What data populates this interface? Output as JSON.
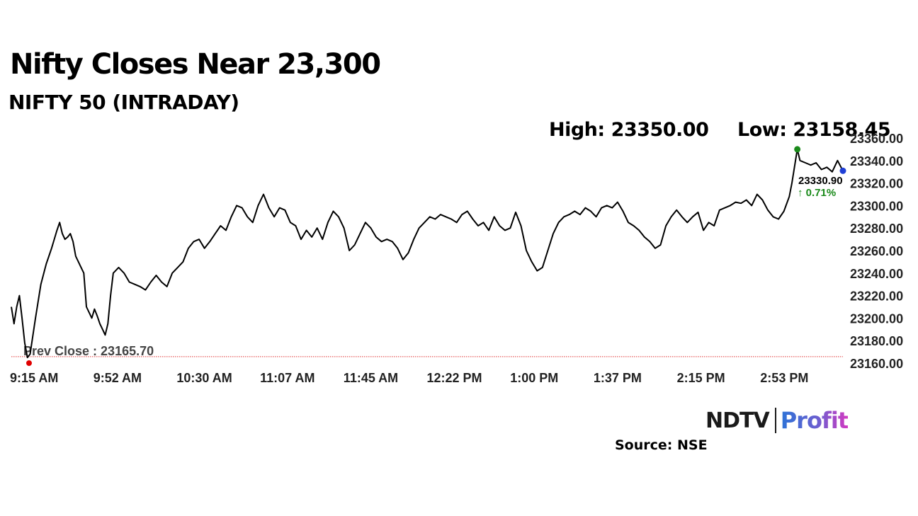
{
  "header": {
    "title": "Nifty Closes Near 23,300",
    "subtitle": "NIFTY 50 (INTRADAY)"
  },
  "stats": {
    "high_label": "High: 23350.00",
    "low_label": "Low: 23158.45"
  },
  "chart_data": {
    "type": "line",
    "title": "Nifty Closes Near 23,300",
    "subtitle": "NIFTY 50 (INTRADAY)",
    "xlabel": "",
    "ylabel": "",
    "x_tick_labels": [
      "9:15 AM",
      "9:52 AM",
      "10:30 AM",
      "11:07 AM",
      "11:45 AM",
      "12:22 PM",
      "1:00 PM",
      "1:37 PM",
      "2:15 PM",
      "2:53 PM"
    ],
    "y_tick_labels": [
      "23160.00",
      "23180.00",
      "23200.00",
      "23220.00",
      "23240.00",
      "23260.00",
      "23280.00",
      "23300.00",
      "23320.00",
      "23340.00",
      "23360.00"
    ],
    "ylim": [
      23160,
      23360
    ],
    "y_axis_side": "right",
    "grid": false,
    "series": [
      {
        "values": [
          [
            0,
            23210
          ],
          [
            1,
            23195
          ],
          [
            2,
            23210
          ],
          [
            3,
            23220
          ],
          [
            4,
            23200
          ],
          [
            5,
            23178
          ],
          [
            6,
            23165
          ],
          [
            7,
            23168
          ],
          [
            9,
            23200
          ],
          [
            11,
            23230
          ],
          [
            13,
            23248
          ],
          [
            14,
            23255
          ],
          [
            15,
            23262
          ],
          [
            16,
            23270
          ],
          [
            17,
            23278
          ],
          [
            18,
            23285
          ],
          [
            19,
            23275
          ],
          [
            20,
            23270
          ],
          [
            21,
            23272
          ],
          [
            22,
            23275
          ],
          [
            23,
            23268
          ],
          [
            24,
            23255
          ],
          [
            25,
            23250
          ],
          [
            26,
            23245
          ],
          [
            27,
            23240
          ],
          [
            28,
            23210
          ],
          [
            29,
            23205
          ],
          [
            30,
            23200
          ],
          [
            31,
            23208
          ],
          [
            32,
            23202
          ],
          [
            33,
            23195
          ],
          [
            34,
            23190
          ],
          [
            35,
            23185
          ],
          [
            36,
            23195
          ],
          [
            37,
            23220
          ],
          [
            38,
            23240
          ],
          [
            40,
            23245
          ],
          [
            42,
            23240
          ],
          [
            44,
            23232
          ],
          [
            46,
            23230
          ],
          [
            48,
            23228
          ],
          [
            50,
            23225
          ],
          [
            52,
            23232
          ],
          [
            54,
            23238
          ],
          [
            56,
            23232
          ],
          [
            58,
            23228
          ],
          [
            60,
            23240
          ],
          [
            62,
            23245
          ],
          [
            64,
            23250
          ],
          [
            66,
            23262
          ],
          [
            68,
            23268
          ],
          [
            70,
            23270
          ],
          [
            72,
            23262
          ],
          [
            74,
            23268
          ],
          [
            76,
            23275
          ],
          [
            78,
            23282
          ],
          [
            80,
            23278
          ],
          [
            82,
            23290
          ],
          [
            84,
            23300
          ],
          [
            86,
            23298
          ],
          [
            88,
            23290
          ],
          [
            90,
            23285
          ],
          [
            92,
            23300
          ],
          [
            94,
            23310
          ],
          [
            96,
            23298
          ],
          [
            98,
            23290
          ],
          [
            100,
            23298
          ],
          [
            102,
            23296
          ],
          [
            104,
            23285
          ],
          [
            106,
            23282
          ],
          [
            108,
            23270
          ],
          [
            110,
            23278
          ],
          [
            112,
            23272
          ],
          [
            114,
            23280
          ],
          [
            116,
            23270
          ],
          [
            118,
            23285
          ],
          [
            120,
            23295
          ],
          [
            122,
            23290
          ],
          [
            124,
            23280
          ],
          [
            126,
            23260
          ],
          [
            128,
            23265
          ],
          [
            130,
            23275
          ],
          [
            132,
            23285
          ],
          [
            134,
            23280
          ],
          [
            136,
            23272
          ],
          [
            138,
            23268
          ],
          [
            140,
            23270
          ],
          [
            142,
            23268
          ],
          [
            144,
            23262
          ],
          [
            146,
            23252
          ],
          [
            148,
            23258
          ],
          [
            150,
            23270
          ],
          [
            152,
            23280
          ],
          [
            154,
            23285
          ],
          [
            156,
            23290
          ],
          [
            158,
            23288
          ],
          [
            160,
            23292
          ],
          [
            162,
            23290
          ],
          [
            164,
            23288
          ],
          [
            166,
            23285
          ],
          [
            168,
            23292
          ],
          [
            170,
            23295
          ],
          [
            172,
            23288
          ],
          [
            174,
            23282
          ],
          [
            176,
            23285
          ],
          [
            178,
            23278
          ],
          [
            180,
            23290
          ],
          [
            182,
            23282
          ],
          [
            184,
            23278
          ],
          [
            186,
            23280
          ],
          [
            188,
            23294
          ],
          [
            190,
            23282
          ],
          [
            192,
            23260
          ],
          [
            194,
            23250
          ],
          [
            196,
            23242
          ],
          [
            198,
            23245
          ],
          [
            200,
            23260
          ],
          [
            202,
            23275
          ],
          [
            204,
            23285
          ],
          [
            206,
            23290
          ],
          [
            208,
            23292
          ],
          [
            210,
            23295
          ],
          [
            212,
            23292
          ],
          [
            214,
            23298
          ],
          [
            216,
            23295
          ],
          [
            218,
            23290
          ],
          [
            220,
            23298
          ],
          [
            222,
            23300
          ],
          [
            224,
            23298
          ],
          [
            226,
            23303
          ],
          [
            228,
            23295
          ],
          [
            230,
            23285
          ],
          [
            232,
            23282
          ],
          [
            234,
            23278
          ],
          [
            236,
            23272
          ],
          [
            238,
            23268
          ],
          [
            240,
            23262
          ],
          [
            242,
            23265
          ],
          [
            244,
            23282
          ],
          [
            246,
            23290
          ],
          [
            248,
            23296
          ],
          [
            250,
            23290
          ],
          [
            252,
            23285
          ],
          [
            254,
            23290
          ],
          [
            256,
            23294
          ],
          [
            258,
            23278
          ],
          [
            260,
            23285
          ],
          [
            262,
            23282
          ],
          [
            264,
            23296
          ],
          [
            266,
            23298
          ],
          [
            268,
            23300
          ],
          [
            270,
            23303
          ],
          [
            272,
            23302
          ],
          [
            274,
            23305
          ],
          [
            276,
            23300
          ],
          [
            278,
            23310
          ],
          [
            280,
            23305
          ],
          [
            282,
            23296
          ],
          [
            284,
            23290
          ],
          [
            286,
            23288
          ],
          [
            288,
            23295
          ],
          [
            290,
            23308
          ],
          [
            291,
            23320
          ],
          [
            292,
            23335
          ],
          [
            293,
            23350
          ],
          [
            294,
            23340
          ],
          [
            296,
            23338
          ],
          [
            298,
            23336
          ],
          [
            300,
            23338
          ],
          [
            302,
            23332
          ],
          [
            304,
            23334
          ],
          [
            306,
            23330
          ],
          [
            308,
            23340
          ],
          [
            310,
            23330.9
          ]
        ]
      }
    ],
    "reference_line": {
      "label": "Prev Close : 23165.70",
      "value": 23165.7,
      "color": "#e03030"
    },
    "markers": [
      {
        "kind": "open",
        "value": 23160,
        "color": "#e00000"
      },
      {
        "kind": "high",
        "value": 23350.0,
        "color": "#1a8a1a"
      },
      {
        "kind": "last",
        "value": 23330.9,
        "color": "#1f3fd6"
      }
    ],
    "last_value_label": "23330.90",
    "change_label": "↑ 0.71%",
    "line_color": "#000000",
    "change_color": "#1a8a1a"
  },
  "branding": {
    "logo_ndtv": "NDTV",
    "logo_profit": "Profit",
    "source": "Source: NSE"
  }
}
